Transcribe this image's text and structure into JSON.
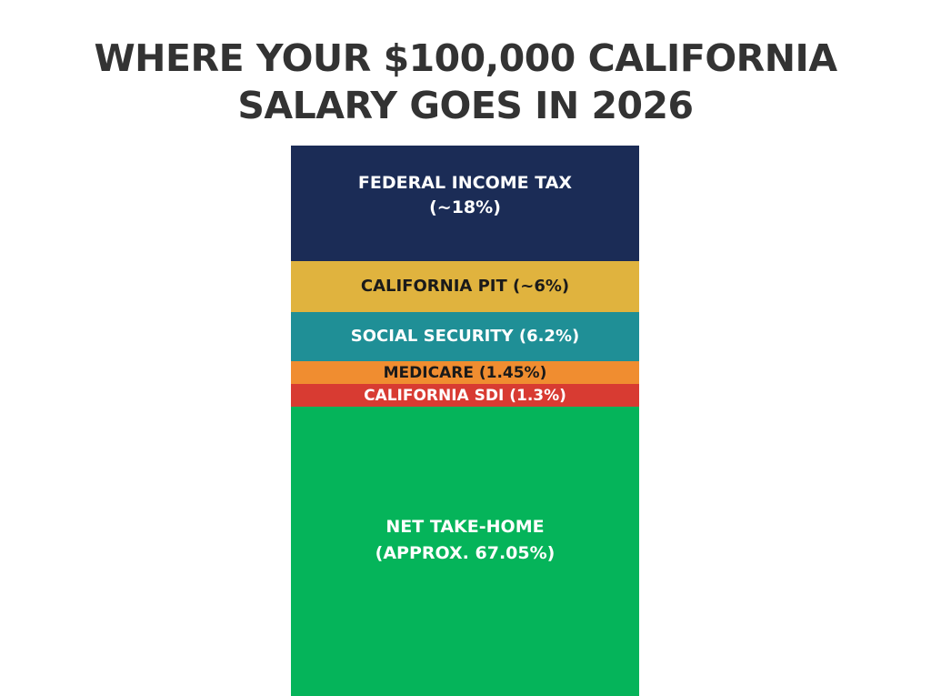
{
  "title": {
    "line1": "WHERE YOUR $100,000 CALIFORNIA",
    "line2": "SALARY GOES IN 2026"
  },
  "segments": [
    {
      "label": "FEDERAL INCOME TAX",
      "value_text": "(~18%)",
      "color": "#1b2c56",
      "text_color": "#ffffff"
    },
    {
      "label": "CALIFORNIA PIT (~6%)",
      "color": "#e0b33e",
      "text_color": "#1a1a1a"
    },
    {
      "label": "SOCIAL SECURITY (6.2%)",
      "color": "#1f8f96",
      "text_color": "#ffffff"
    },
    {
      "label": "MEDICARE (1.45%)",
      "color": "#f08d30",
      "text_color": "#1a1a1a"
    },
    {
      "label": "CALIFORNIA SDI (1.3%)",
      "color": "#d83b32",
      "text_color": "#ffffff"
    },
    {
      "label": "NET TAKE-HOME",
      "value_text": "(APPROX. 67.05%)",
      "color": "#05b45a",
      "text_color": "#ffffff"
    }
  ],
  "chart_data": {
    "type": "bar",
    "subtype": "stacked-single-column",
    "title": "WHERE YOUR $100,000 CALIFORNIA SALARY GOES IN 2026",
    "xlabel": "",
    "ylabel": "",
    "grid": false,
    "legend": "inline labels",
    "categories": [
      "Federal Income Tax",
      "California PIT",
      "Social Security",
      "Medicare",
      "California SDI",
      "Net Take-Home"
    ],
    "values": [
      18,
      6,
      6.2,
      1.45,
      1.3,
      67.05
    ],
    "units": "% of gross salary",
    "series": [
      {
        "name": "Federal Income Tax",
        "values": [
          18
        ],
        "color": "#1b2c56",
        "label": "FEDERAL INCOME TAX (~18%)"
      },
      {
        "name": "California PIT",
        "values": [
          6
        ],
        "color": "#e0b33e",
        "label": "CALIFORNIA PIT (~6%)"
      },
      {
        "name": "Social Security",
        "values": [
          6.2
        ],
        "color": "#1f8f96",
        "label": "SOCIAL SECURITY (6.2%)"
      },
      {
        "name": "Medicare",
        "values": [
          1.45
        ],
        "color": "#f08d30",
        "label": "MEDICARE (1.45%)"
      },
      {
        "name": "California SDI",
        "values": [
          1.3
        ],
        "color": "#d83b32",
        "label": "CALIFORNIA SDI (1.3%)"
      },
      {
        "name": "Net Take-Home",
        "values": [
          67.05
        ],
        "color": "#05b45a",
        "label": "NET TAKE-HOME (APPROX. 67.05%)"
      }
    ],
    "ylim": [
      0,
      100
    ]
  }
}
